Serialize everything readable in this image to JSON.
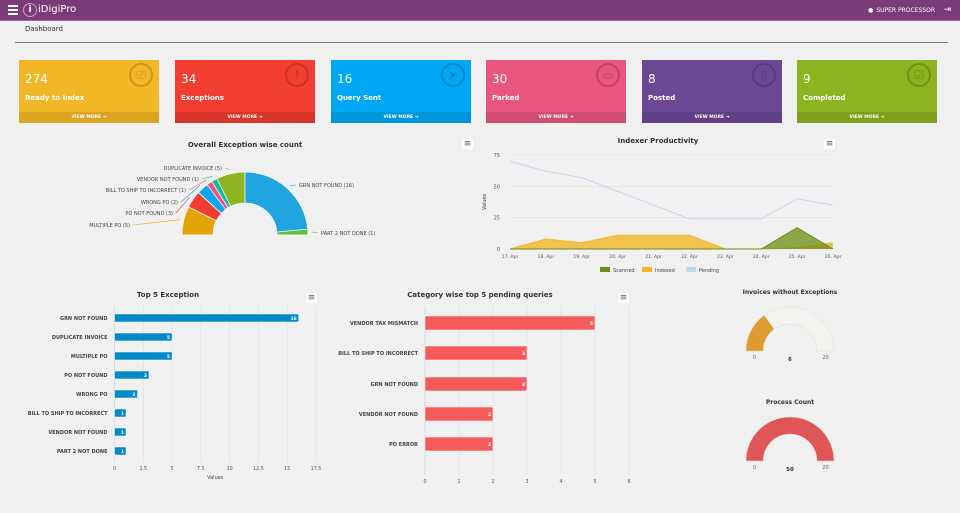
{
  "header": {
    "app_name": "iDigiPro",
    "user": "SUPER PROCESSOR",
    "icons": [
      "menu-icon",
      "logo-icon",
      "user-icon",
      "logout-icon"
    ]
  },
  "breadcrumb": "Dashboard",
  "cards": [
    {
      "value": "274",
      "label": "Ready to Index",
      "footer": "VIEW MORE",
      "color": "#f2b726",
      "foot": "#dba521",
      "icon": "scanner-icon",
      "glyph": "⎚"
    },
    {
      "value": "34",
      "label": "Exceptions",
      "footer": "VIEW MORE",
      "color": "#f13e30",
      "foot": "#d8362b",
      "icon": "exclamation-icon",
      "glyph": "!"
    },
    {
      "value": "16",
      "label": "Query Sent",
      "footer": "VIEW MORE",
      "color": "#00a7f5",
      "foot": "#0096dc",
      "icon": "paper-plane-icon",
      "glyph": "➤"
    },
    {
      "value": "30",
      "label": "Parked",
      "footer": "VIEW MORE",
      "color": "#e8557f",
      "foot": "#d04c72",
      "icon": "inbox-icon",
      "glyph": "▭"
    },
    {
      "value": "8",
      "label": "Posted",
      "footer": "VIEW MORE",
      "color": "#6c4894",
      "foot": "#5f4085",
      "icon": "document-icon",
      "glyph": "▯"
    },
    {
      "value": "9",
      "label": "Completed",
      "footer": "VIEW MORE",
      "color": "#8db321",
      "foot": "#7ea01d",
      "icon": "check-box-icon",
      "glyph": "☑"
    }
  ],
  "chart_data": [
    {
      "type": "pie",
      "variant": "semi-donut",
      "title": "Overall Exception wise count",
      "slices": [
        {
          "label": "MULTIPLE PO (5)",
          "name": "MULTIPLE PO",
          "value": 5,
          "color": "#e2a505"
        },
        {
          "label": "PO NOT FOUND (3)",
          "name": "PO NOT FOUND",
          "value": 3,
          "color": "#f13e30"
        },
        {
          "label": "WRONG PO (2)",
          "name": "WRONG PO",
          "value": 2,
          "color": "#09a6f2"
        },
        {
          "label": "BILL TO SHIP TO INCORRECT (1)",
          "name": "BILL TO SHIP TO INCORRECT",
          "value": 1,
          "color": "#e8557f"
        },
        {
          "label": "VENDOR NOT FOUND (1)",
          "name": "VENDOR NOT FOUND",
          "value": 1,
          "color": "#17b7a8"
        },
        {
          "label": "DUPLICATE INVOICE (5)",
          "name": "DUPLICATE INVOICE",
          "value": 5,
          "color": "#8db321"
        },
        {
          "label": "GRN NOT FOUND (16)",
          "name": "GRN NOT FOUND",
          "value": 16,
          "color": "#1fa6df"
        },
        {
          "label": "PART 2 NOT DONE (1)",
          "name": "PART 2 NOT DONE",
          "value": 1,
          "color": "#5bc23b"
        }
      ]
    },
    {
      "type": "area",
      "title": "Indexer Productivity",
      "ylabel": "Values",
      "ylim": [
        0,
        75
      ],
      "yticks": [
        "0",
        "25",
        "50",
        "75"
      ],
      "categories": [
        "17. Apr",
        "18. Apr",
        "19. Apr",
        "20. Apr",
        "21. Apr",
        "22. Apr",
        "23. Apr",
        "24. Apr",
        "25. Apr",
        "26. Apr"
      ],
      "legend_position": "bottom",
      "series": [
        {
          "name": "Scanned",
          "color": "#6b8e12",
          "values": [
            0,
            0,
            0,
            0,
            0,
            0,
            0,
            0,
            17,
            0
          ]
        },
        {
          "name": "Indexed",
          "color": "#f2b726",
          "values": [
            0,
            8,
            5,
            11,
            11,
            11,
            0,
            0,
            1,
            5
          ]
        },
        {
          "name": "Pending",
          "color": "#bcd8f2",
          "values": [
            70,
            62,
            57,
            46,
            35,
            24,
            24,
            24,
            40,
            35
          ]
        }
      ]
    },
    {
      "type": "bar",
      "orientation": "horizontal",
      "title": "Top 5 Exception",
      "xlabel": "Values",
      "xlim": [
        0,
        17.5
      ],
      "xticks": [
        "0",
        "2.5",
        "5",
        "7.5",
        "10",
        "12.5",
        "15",
        "17.5"
      ],
      "color": "#0388c8",
      "categories": [
        "GRN NOT FOUND",
        "DUPLICATE INVOICE",
        "MULTIPLE PO",
        "PO NOT FOUND",
        "WRONG PO",
        "BILL TO SHIP TO INCORRECT",
        "VENDOR NOT FOUND",
        "PART 2 NOT DONE"
      ],
      "values": [
        16,
        5,
        5,
        3,
        2,
        1,
        1,
        1
      ]
    },
    {
      "type": "bar",
      "orientation": "horizontal",
      "title": "Category wise top 5 pending queries",
      "xlabel": "Values",
      "xlim": [
        0,
        6
      ],
      "xticks": [
        "0",
        "1",
        "2",
        "3",
        "4",
        "5",
        "6"
      ],
      "color": "#f55b5b",
      "categories": [
        "VENDOR TAX MISMATCH",
        "BILL TO SHIP TO INCORRECT",
        "GRN NOT FOUND",
        "VENDOR NOT FOUND",
        "PO ERROR"
      ],
      "values": [
        5,
        3,
        3,
        2,
        2
      ]
    },
    {
      "type": "gauge",
      "title": "Invoices without Exceptions",
      "min": 0,
      "max": 20,
      "value": 6,
      "min_label": "0",
      "max_label": "20",
      "value_label": "6",
      "color": "#df9a30"
    },
    {
      "type": "gauge",
      "title": "Process Count",
      "min": 0,
      "max": 20,
      "value": 50,
      "min_label": "0",
      "max_label": "20",
      "value_label": "50",
      "color": "#e05555"
    }
  ]
}
